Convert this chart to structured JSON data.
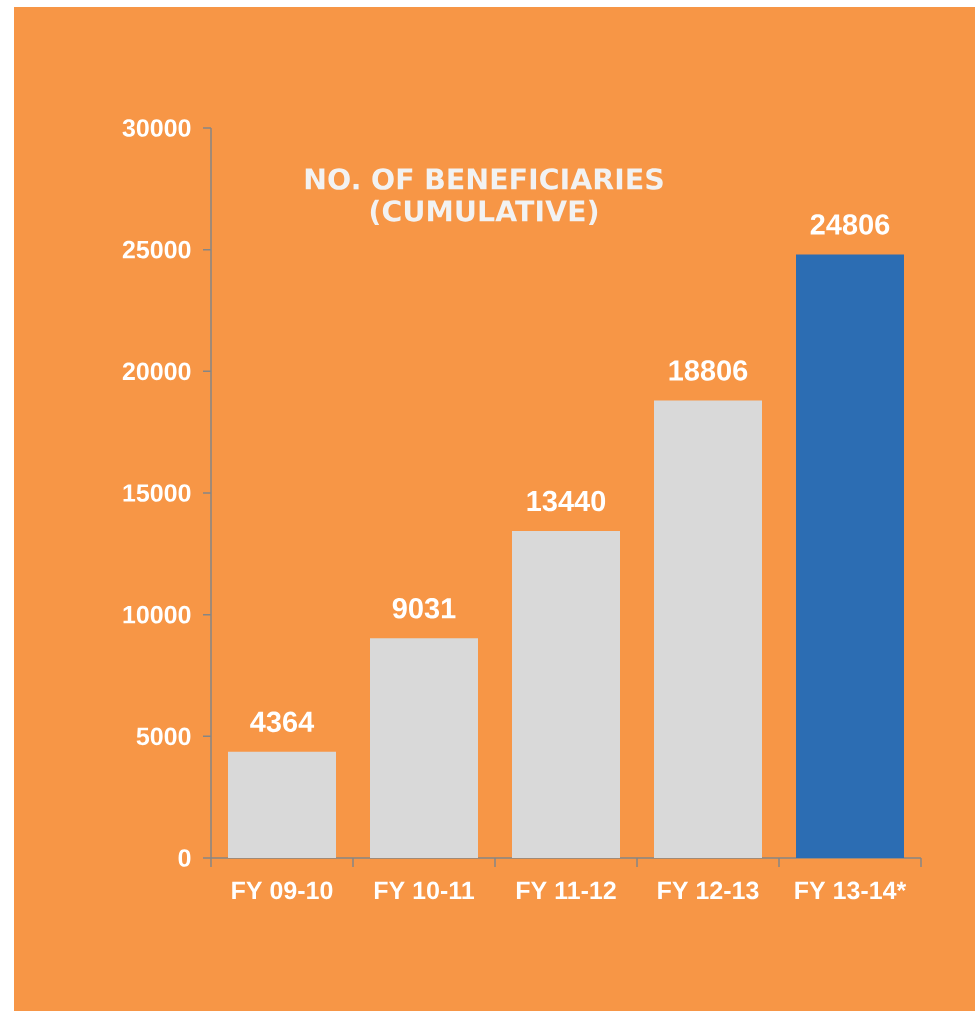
{
  "chart_data": {
    "type": "bar",
    "title": "NO. OF BENEFICIARIES (CUMULATIVE)",
    "categories": [
      "FY 09-10",
      "FY 10-11",
      "FY 11-12",
      "FY 12-13",
      "FY 13-14*"
    ],
    "values": [
      4364,
      9031,
      13440,
      18806,
      24806
    ],
    "colors": [
      "#d9d9d9",
      "#d9d9d9",
      "#d9d9d9",
      "#d9d9d9",
      "#2c6db3"
    ],
    "ylim": [
      0,
      30000
    ],
    "yticks": [
      0,
      5000,
      10000,
      15000,
      20000,
      25000,
      30000
    ],
    "data_labels": true
  }
}
